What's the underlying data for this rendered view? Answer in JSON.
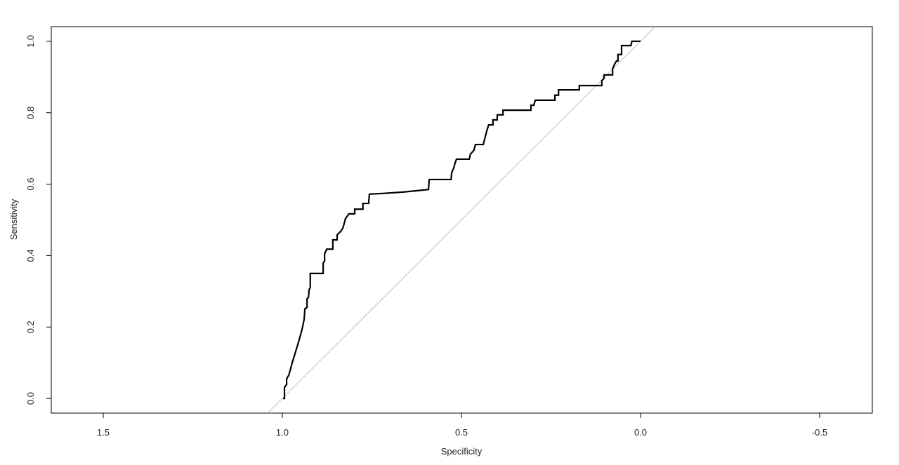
{
  "chart_data": {
    "type": "line",
    "x_label": "Specificity",
    "y_label": "Sensitivity",
    "xlim": [
      1.645,
      -0.647
    ],
    "ylim": [
      -0.041,
      1.041
    ],
    "xticks": [
      1.5,
      {
        "value": 1,
        "label": "1.0"
      },
      0.5,
      {
        "value": 0,
        "label": "0.0"
      },
      -0.5
    ],
    "yticks": [
      {
        "value": 0,
        "label": "0.0"
      },
      0.2,
      0.4,
      0.6,
      0.8,
      {
        "value": 1,
        "label": "1.0"
      }
    ],
    "color": "#000000",
    "diagonal": true,
    "diagonal_color": "#bebebe",
    "x": [
      0.998,
      0.994,
      0.994,
      0.988,
      0.988,
      0.982,
      0.978,
      0.973,
      0.965,
      0.955,
      0.945,
      0.939,
      0.937,
      0.931,
      0.931,
      0.927,
      0.925,
      0.922,
      0.922,
      0.886,
      0.886,
      0.882,
      0.882,
      0.876,
      0.859,
      0.859,
      0.847,
      0.847,
      0.837,
      0.831,
      0.827,
      0.824,
      0.814,
      0.798,
      0.798,
      0.775,
      0.775,
      0.759,
      0.757,
      0.72,
      0.661,
      0.592,
      0.59,
      0.529,
      0.527,
      0.522,
      0.518,
      0.514,
      0.478,
      0.475,
      0.465,
      0.461,
      0.439,
      0.435,
      0.429,
      0.424,
      0.412,
      0.412,
      0.4,
      0.4,
      0.384,
      0.384,
      0.306,
      0.306,
      0.298,
      0.294,
      0.239,
      0.239,
      0.229,
      0.229,
      0.171,
      0.171,
      0.108,
      0.108,
      0.102,
      0.102,
      0.078,
      0.078,
      0.073,
      0.067,
      0.063,
      0.063,
      0.053,
      0.053,
      0.027,
      0.024,
      0
    ],
    "values": [
      0,
      0,
      0.031,
      0.039,
      0.055,
      0.065,
      0.079,
      0.098,
      0.124,
      0.157,
      0.193,
      0.222,
      0.251,
      0.255,
      0.279,
      0.283,
      0.306,
      0.31,
      0.35,
      0.35,
      0.379,
      0.385,
      0.405,
      0.418,
      0.418,
      0.444,
      0.444,
      0.458,
      0.468,
      0.477,
      0.491,
      0.503,
      0.517,
      0.517,
      0.53,
      0.53,
      0.546,
      0.546,
      0.572,
      0.574,
      0.578,
      0.585,
      0.613,
      0.613,
      0.633,
      0.644,
      0.658,
      0.67,
      0.67,
      0.684,
      0.695,
      0.711,
      0.711,
      0.727,
      0.75,
      0.766,
      0.766,
      0.78,
      0.78,
      0.794,
      0.794,
      0.807,
      0.807,
      0.821,
      0.821,
      0.835,
      0.835,
      0.849,
      0.849,
      0.864,
      0.864,
      0.876,
      0.876,
      0.89,
      0.896,
      0.906,
      0.906,
      0.923,
      0.935,
      0.945,
      0.945,
      0.963,
      0.963,
      0.988,
      0.988,
      1.0,
      1.0
    ]
  }
}
